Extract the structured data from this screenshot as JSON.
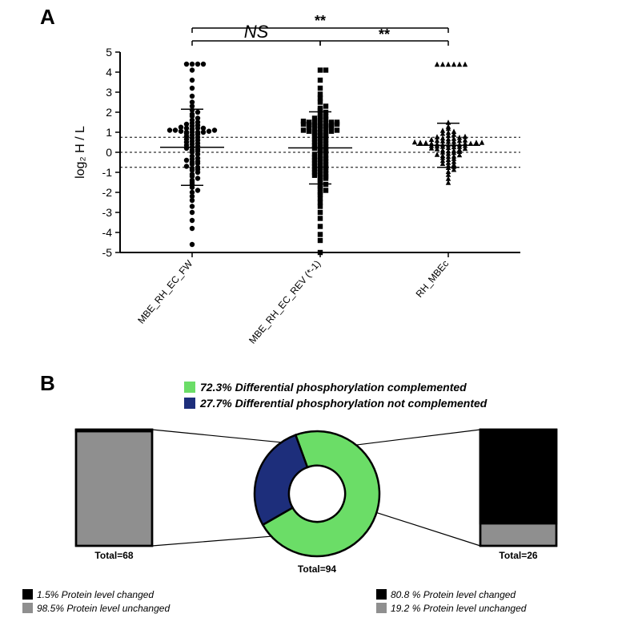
{
  "panelA": {
    "label": "A",
    "scatter": {
      "type": "scatter",
      "yaxis": {
        "label": "log₂ H / L",
        "min": -5,
        "max": 5,
        "ticks": [
          -5,
          -4,
          -3,
          -2,
          -1,
          0,
          1,
          2,
          3,
          4,
          5
        ]
      },
      "dashed_lines": [
        -0.75,
        0,
        0.75
      ],
      "categories": [
        "MBE_RH_EC_FW",
        "MBE_RH_EC_REV (*-1)",
        "RH_MBEc"
      ],
      "markers": [
        "circle",
        "square",
        "triangle"
      ],
      "colors": {
        "point": "#000000",
        "axis": "#000000",
        "bg": "#ffffff"
      },
      "series": [
        {
          "name": "MBE_RH_EC_FW",
          "mean": 0.25,
          "sd": 1.9,
          "y": [
            -4.6,
            -3.8,
            -3.4,
            -3.0,
            -2.7,
            -2.4,
            -2.2,
            -2.0,
            -1.9,
            -1.75,
            -1.6,
            -1.5,
            -1.4,
            -1.3,
            -1.2,
            -1.1,
            -1.0,
            -0.9,
            -0.85,
            -0.8,
            -0.75,
            -0.7,
            -0.6,
            -0.55,
            -0.5,
            -0.45,
            -0.4,
            -0.35,
            -0.3,
            -0.2,
            -0.1,
            0.0,
            0.05,
            0.1,
            0.15,
            0.2,
            0.25,
            0.3,
            0.35,
            0.4,
            0.45,
            0.5,
            0.55,
            0.6,
            0.65,
            0.7,
            0.75,
            0.8,
            0.85,
            0.9,
            0.95,
            1.0,
            1.0,
            1.0,
            1.0,
            1.05,
            1.05,
            1.1,
            1.1,
            1.1,
            1.15,
            1.2,
            1.2,
            1.2,
            1.25,
            1.3,
            1.35,
            1.4,
            1.45,
            1.5,
            1.6,
            1.7,
            1.8,
            1.9,
            2.0,
            2.1,
            2.3,
            2.5,
            2.8,
            3.2,
            3.6,
            4.1,
            4.4,
            4.4,
            4.4,
            4.4
          ]
        },
        {
          "name": "MBE_RH_EC_REV (*-1)",
          "mean": 0.22,
          "sd": 1.8,
          "y": [
            -5.0,
            -4.4,
            -4.1,
            -3.7,
            -3.3,
            -3.0,
            -2.7,
            -2.5,
            -2.3,
            -2.1,
            -2.0,
            -1.9,
            -1.8,
            -1.7,
            -1.6,
            -1.5,
            -1.4,
            -1.3,
            -1.25,
            -1.2,
            -1.15,
            -1.1,
            -1.05,
            -1.0,
            -0.95,
            -0.9,
            -0.85,
            -0.8,
            -0.75,
            -0.7,
            -0.65,
            -0.6,
            -0.55,
            -0.5,
            -0.45,
            -0.4,
            -0.35,
            -0.3,
            -0.25,
            -0.2,
            -0.15,
            -0.1,
            0.0,
            0.05,
            0.1,
            0.15,
            0.2,
            0.25,
            0.3,
            0.35,
            0.4,
            0.45,
            0.5,
            0.55,
            0.6,
            0.65,
            0.7,
            0.75,
            0.8,
            0.85,
            0.9,
            0.95,
            1.0,
            1.0,
            1.0,
            1.05,
            1.05,
            1.1,
            1.1,
            1.15,
            1.2,
            1.2,
            1.25,
            1.25,
            1.3,
            1.3,
            1.35,
            1.35,
            1.4,
            1.4,
            1.4,
            1.45,
            1.45,
            1.5,
            1.5,
            1.5,
            1.5,
            1.55,
            1.6,
            1.65,
            1.7,
            1.75,
            1.8,
            1.9,
            2.0,
            2.1,
            2.2,
            2.3,
            2.5,
            2.7,
            2.9,
            3.2,
            3.6,
            4.1,
            4.1
          ]
        },
        {
          "name": "RH_MBEc",
          "mean": 0.35,
          "sd": 1.1,
          "y": [
            -1.5,
            -1.3,
            -1.1,
            -0.95,
            -0.85,
            -0.75,
            -0.7,
            -0.65,
            -0.6,
            -0.55,
            -0.5,
            -0.45,
            -0.4,
            -0.35,
            -0.3,
            -0.25,
            -0.2,
            -0.18,
            -0.15,
            -0.12,
            -0.1,
            -0.05,
            0.0,
            0.02,
            0.05,
            0.08,
            0.1,
            0.12,
            0.15,
            0.18,
            0.2,
            0.22,
            0.25,
            0.28,
            0.3,
            0.3,
            0.32,
            0.35,
            0.35,
            0.38,
            0.4,
            0.4,
            0.4,
            0.42,
            0.45,
            0.45,
            0.45,
            0.48,
            0.5,
            0.5,
            0.5,
            0.52,
            0.55,
            0.55,
            0.58,
            0.6,
            0.6,
            0.62,
            0.65,
            0.68,
            0.7,
            0.72,
            0.75,
            0.78,
            0.8,
            0.85,
            0.9,
            0.95,
            1.0,
            1.05,
            1.1,
            1.2,
            1.3,
            1.5,
            4.4,
            4.4,
            4.4,
            4.4,
            4.4,
            4.4
          ]
        }
      ],
      "sig": [
        {
          "from": 0,
          "to": 1,
          "label": "NS",
          "y": 5.3
        },
        {
          "from": 1,
          "to": 2,
          "label": "**",
          "y": 5.3
        },
        {
          "from": 0,
          "to": 2,
          "label": "**",
          "y": 5.9
        }
      ]
    }
  },
  "panelB": {
    "label": "B",
    "donut": {
      "type": "pie",
      "total_label": "Total=94",
      "slices": [
        {
          "label": "72.3% Differential phosphorylation complemented",
          "value": 72.3,
          "color": "#6bdd67"
        },
        {
          "label": "27.7% Differential phosphorylation not complemented",
          "value": 27.7,
          "color": "#1d2e7b"
        }
      ],
      "inner_ratio": 0.45
    },
    "left_bar": {
      "type": "bar",
      "total_label": "Total=68",
      "segments": [
        {
          "label": "1.5% Protein level changed",
          "value": 1.5,
          "color": "#000000"
        },
        {
          "label": "98.5% Protein level unchanged",
          "value": 98.5,
          "color": "#8f8f8f"
        }
      ]
    },
    "right_bar": {
      "type": "bar",
      "total_label": "Total=26",
      "segments": [
        {
          "label": "80.8 % Protein level changed",
          "value": 80.8,
          "color": "#000000"
        },
        {
          "label": "19.2 % Protein level unchanged",
          "value": 19.2,
          "color": "#8f8f8f"
        }
      ]
    }
  }
}
